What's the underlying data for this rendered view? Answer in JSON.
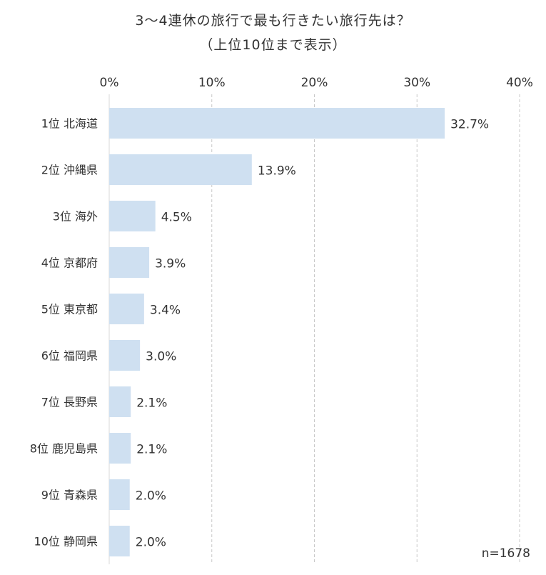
{
  "chart_data": {
    "type": "bar",
    "orientation": "horizontal",
    "title": "3～4連休の旅行で最も行きたい旅行先は？",
    "subtitle": "（上位10位まで表示）",
    "categories": [
      "1位 北海道",
      "2位 沖縄県",
      "3位 海外",
      "4位 京都府",
      "5位 東京都",
      "6位 福岡県",
      "7位 長野県",
      "8位 鹿児島県",
      "9位 青森県",
      "10位 静岡県"
    ],
    "values": [
      32.7,
      13.9,
      4.5,
      3.9,
      3.4,
      3.0,
      2.1,
      2.1,
      2.0,
      2.0
    ],
    "value_labels": [
      "32.7%",
      "13.9%",
      "4.5%",
      "3.9%",
      "3.4%",
      "3.0%",
      "2.1%",
      "2.1%",
      "2.0%",
      "2.0%"
    ],
    "x_ticks": [
      0,
      10,
      20,
      30,
      40
    ],
    "x_tick_labels": [
      "0%",
      "10%",
      "20%",
      "30%",
      "40%"
    ],
    "xlim": [
      0,
      40
    ],
    "axis_position": "top",
    "grid": true,
    "grid_style": "dashed",
    "bar_color": "#cfe0f1",
    "note": "n=1678"
  }
}
